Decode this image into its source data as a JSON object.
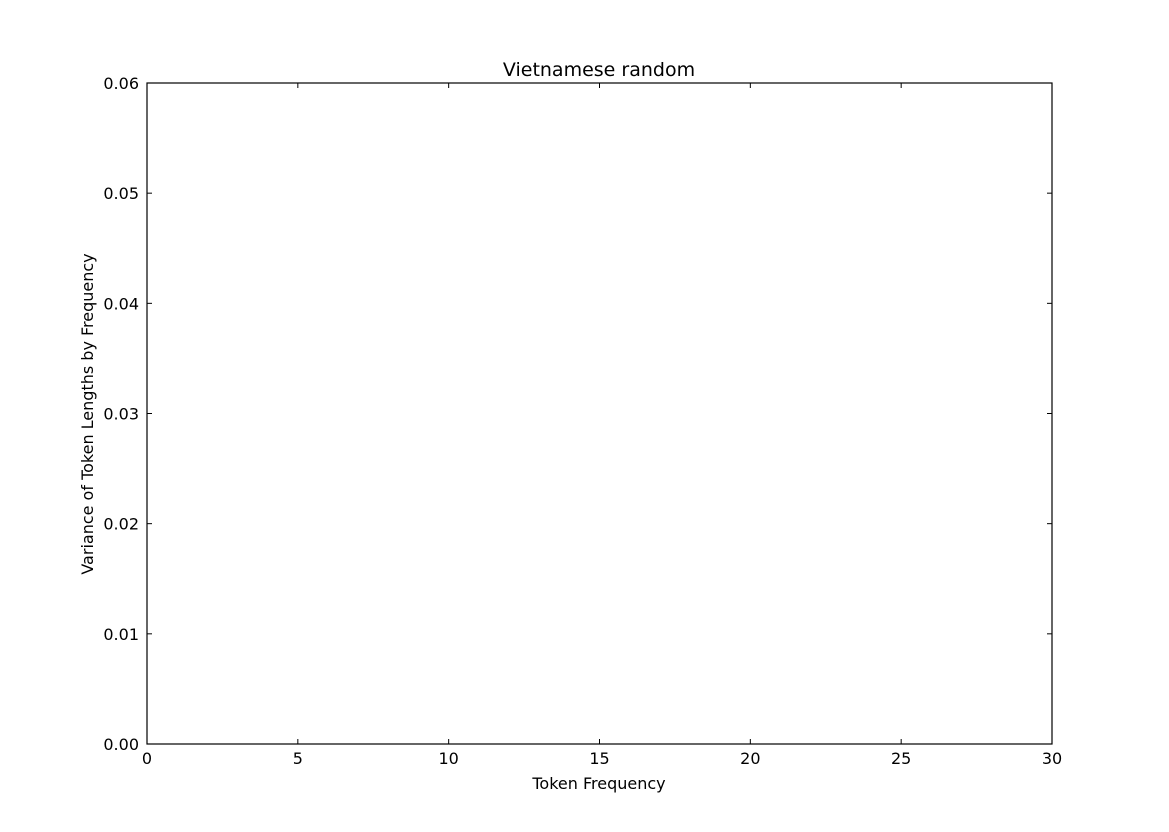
{
  "chart_data": {
    "type": "line",
    "title": "Vietnamese random",
    "xlabel": "Token Frequency",
    "ylabel": "Variance of Token Lengths by Frequency",
    "xlim": [
      0,
      30
    ],
    "ylim": [
      0,
      0.06
    ],
    "x_ticks": [
      0,
      5,
      10,
      15,
      20,
      25,
      30
    ],
    "x_tick_labels": [
      "0",
      "5",
      "10",
      "15",
      "20",
      "25",
      "30"
    ],
    "y_ticks": [
      0,
      0.01,
      0.02,
      0.03,
      0.04,
      0.05,
      0.06
    ],
    "y_tick_labels": [
      "0.00",
      "0.01",
      "0.02",
      "0.03",
      "0.04",
      "0.05",
      "0.06"
    ],
    "grid": false,
    "series": [
      {
        "color": "#000000",
        "linestyle": "dashed",
        "x": [
          1,
          2,
          3,
          4,
          5,
          6,
          7,
          8,
          9,
          10,
          11,
          12,
          13,
          14,
          15,
          16,
          17,
          18,
          19,
          20,
          21,
          22,
          23,
          24,
          25,
          26
        ],
        "y": [
          0,
          0,
          0,
          0,
          0,
          0,
          0,
          0,
          0,
          0,
          0,
          0,
          0,
          0,
          0,
          0,
          0,
          0,
          0,
          0,
          0,
          0,
          0,
          0,
          0,
          0
        ]
      }
    ]
  }
}
